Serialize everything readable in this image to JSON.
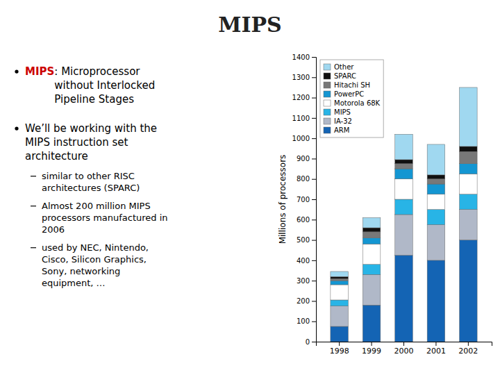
{
  "chart_data": {
    "type": "bar",
    "title": "MIPS",
    "stacked": true,
    "categories": [
      "1998",
      "1999",
      "2000",
      "2001",
      "2002"
    ],
    "series": [
      {
        "name": "ARM",
        "color": "#1464b4",
        "values": [
          75,
          180,
          425,
          400,
          500
        ]
      },
      {
        "name": "IA-32",
        "color": "#b0b8c8",
        "values": [
          100,
          150,
          200,
          175,
          150
        ]
      },
      {
        "name": "MIPS",
        "color": "#28b4e6",
        "values": [
          30,
          50,
          75,
          75,
          75
        ]
      },
      {
        "name": "Motorola 68K",
        "color": "#ffffff",
        "values": [
          75,
          100,
          100,
          75,
          100
        ]
      },
      {
        "name": "PowerPC",
        "color": "#1496d2",
        "values": [
          20,
          30,
          50,
          50,
          50
        ]
      },
      {
        "name": "Hitachi SH",
        "color": "#787878",
        "values": [
          10,
          30,
          25,
          25,
          60
        ]
      },
      {
        "name": "SPARC",
        "color": "#101010",
        "values": [
          10,
          20,
          20,
          20,
          25
        ]
      },
      {
        "name": "Other",
        "color": "#a0d8f0",
        "values": [
          25,
          50,
          125,
          150,
          290
        ]
      }
    ],
    "ylabel": "Millions of processors",
    "ylim": [
      0,
      1400
    ],
    "yticks": [
      0,
      100,
      200,
      300,
      400,
      500,
      600,
      700,
      800,
      900,
      1000,
      1100,
      1200,
      1300,
      1400
    ],
    "grid": false,
    "legend": "upper left",
    "annotations": [
      {
        "label": "MIPS",
        "color": "#cc0000",
        "lines": [
          ": Microprocessor",
          "without Interlocked",
          "Pipeline Stages"
        ]
      },
      {
        "lines": [
          "We’ll be working with the",
          "MIPS instruction set",
          "architecture"
        ],
        "annotations": [
          {
            "lines": [
              "similar to other RISC",
              "architectures (SPARC)"
            ]
          },
          {
            "lines": [
              "Almost 200 million MIPS",
              "processors manufactured in",
              "2006"
            ]
          },
          {
            "lines": [
              "used by NEC, Nintendo,",
              "Cisco, Silicon Graphics,",
              "Sony, networking",
              "equipment, …"
            ]
          }
        ]
      }
    ]
  }
}
